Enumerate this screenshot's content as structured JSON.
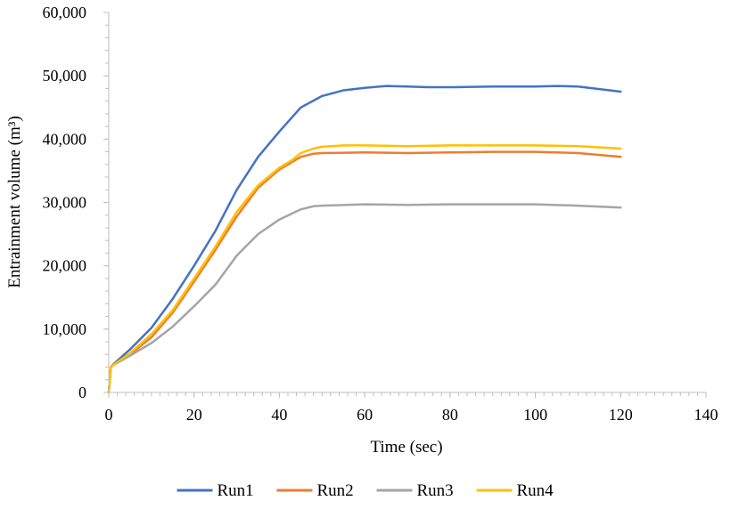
{
  "chart_data": {
    "type": "line",
    "title": "",
    "xlabel": "Time (sec)",
    "ylabel": "Entrainment volume (m³)",
    "xlim": [
      0,
      140
    ],
    "ylim": [
      0,
      60000
    ],
    "xticks": [
      0,
      20,
      40,
      60,
      80,
      100,
      120,
      140
    ],
    "yticks": [
      0,
      10000,
      20000,
      30000,
      40000,
      50000,
      60000
    ],
    "xtick_labels": [
      "0",
      "20",
      "40",
      "60",
      "80",
      "100",
      "120",
      "140"
    ],
    "ytick_labels": [
      "0",
      "10,000",
      "20,000",
      "30,000",
      "40,000",
      "50,000",
      "60,000"
    ],
    "grid": false,
    "legend_position": "bottom",
    "series": [
      {
        "name": "Run1",
        "color": "#4472c4",
        "x": [
          0,
          0.5,
          1,
          5,
          10,
          15,
          20,
          25,
          30,
          35,
          40,
          45,
          50,
          55,
          60,
          65,
          70,
          75,
          80,
          90,
          100,
          105,
          110,
          115,
          120
        ],
        "y": [
          0,
          4000,
          4400,
          6800,
          10200,
          14800,
          20000,
          25500,
          32000,
          37200,
          41200,
          45000,
          46800,
          47700,
          48100,
          48400,
          48300,
          48200,
          48200,
          48300,
          48300,
          48400,
          48300,
          47900,
          47500
        ]
      },
      {
        "name": "Run2",
        "color": "#ed7d31",
        "x": [
          0,
          0.5,
          1,
          5,
          10,
          15,
          20,
          25,
          30,
          35,
          40,
          45,
          48,
          50,
          60,
          70,
          80,
          90,
          100,
          110,
          120
        ],
        "y": [
          0,
          4000,
          4300,
          6000,
          8700,
          12600,
          17500,
          22500,
          27800,
          32300,
          35200,
          37200,
          37700,
          37800,
          37900,
          37800,
          37900,
          38000,
          38000,
          37800,
          37200
        ]
      },
      {
        "name": "Run3",
        "color": "#a5a5a5",
        "x": [
          0,
          0.5,
          1,
          5,
          10,
          15,
          20,
          25,
          30,
          35,
          40,
          45,
          48,
          50,
          60,
          70,
          80,
          90,
          100,
          110,
          120
        ],
        "y": [
          0,
          4000,
          4300,
          5800,
          7800,
          10400,
          13600,
          17000,
          21600,
          25000,
          27300,
          28900,
          29400,
          29500,
          29700,
          29600,
          29700,
          29700,
          29700,
          29500,
          29200
        ]
      },
      {
        "name": "Run4",
        "color": "#ffc000",
        "x": [
          0,
          0.5,
          1,
          5,
          10,
          15,
          20,
          25,
          30,
          35,
          40,
          43,
          45,
          48,
          50,
          55,
          60,
          70,
          80,
          90,
          100,
          110,
          120
        ],
        "y": [
          0,
          4000,
          4300,
          6200,
          9200,
          13000,
          18000,
          23000,
          28500,
          32700,
          35500,
          36700,
          37800,
          38500,
          38800,
          39000,
          39000,
          38900,
          39000,
          39000,
          39000,
          38900,
          38500
        ]
      }
    ]
  }
}
